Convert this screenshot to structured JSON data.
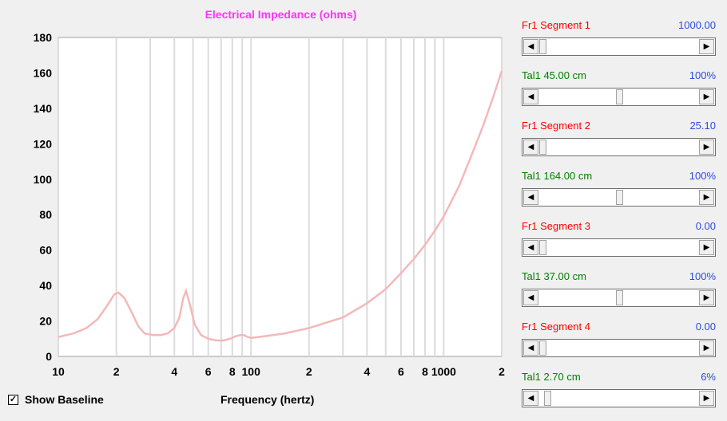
{
  "chart_data": {
    "type": "line",
    "title": "Electrical Impedance (ohms)",
    "xlabel": "Frequency (hertz)",
    "ylabel": "",
    "xscale": "log",
    "xlim": [
      10,
      2000
    ],
    "ylim": [
      0,
      180
    ],
    "grid": true,
    "line_color": "#f4b8b8",
    "yticks": [
      "0",
      "20",
      "40",
      "60",
      "80",
      "100",
      "120",
      "140",
      "160",
      "180"
    ],
    "xticks": [
      {
        "value": 10,
        "label": "10"
      },
      {
        "value": 20,
        "label": "2"
      },
      {
        "value": 40,
        "label": "4"
      },
      {
        "value": 60,
        "label": "6"
      },
      {
        "value": 80,
        "label": "8"
      },
      {
        "value": 100,
        "label": "100"
      },
      {
        "value": 200,
        "label": "2"
      },
      {
        "value": 400,
        "label": "4"
      },
      {
        "value": 600,
        "label": "6"
      },
      {
        "value": 800,
        "label": "8"
      },
      {
        "value": 1000,
        "label": "1000"
      },
      {
        "value": 2000,
        "label": "2"
      }
    ],
    "series": [
      {
        "x": [
          10,
          12,
          14,
          16,
          18,
          19.5,
          20.5,
          22,
          24,
          26,
          28,
          31,
          34,
          37,
          40,
          42.5,
          44.5,
          46,
          48,
          51,
          55,
          60,
          66,
          72,
          78,
          84,
          88,
          92,
          96,
          100,
          110,
          130,
          150,
          200,
          300,
          400,
          500,
          600,
          700,
          800,
          900,
          1000,
          1200,
          1400,
          1600,
          1800,
          2000
        ],
        "y": [
          11,
          13,
          16,
          21,
          29,
          35,
          36,
          33,
          25,
          17,
          13,
          12,
          12,
          13,
          16,
          22,
          33,
          37,
          30,
          18,
          12,
          10,
          9,
          9,
          10,
          11.5,
          12,
          12,
          11,
          10.5,
          11,
          12,
          13,
          16,
          22,
          30,
          38,
          47,
          55,
          63,
          71,
          79,
          96,
          114,
          130,
          146,
          161
        ]
      }
    ]
  },
  "controls": {
    "show_baseline_label": "Show Baseline",
    "show_baseline_checked": "✓",
    "sliders": [
      {
        "left_label": "Fr1  Segment 1",
        "value": "1000.00",
        "color": "red",
        "position": 0.0
      },
      {
        "left_label": "Tal1  45.00 cm",
        "value": "100%",
        "color": "green",
        "position": 0.5
      },
      {
        "left_label": "Fr1  Segment 2",
        "value": "25.10",
        "color": "red",
        "position": 0.0
      },
      {
        "left_label": "Tal1  164.00 cm",
        "value": "100%",
        "color": "green",
        "position": 0.5
      },
      {
        "left_label": "Fr1  Segment 3",
        "value": "0.00",
        "color": "red",
        "position": 0.0
      },
      {
        "left_label": "Tal1  37.00 cm",
        "value": "100%",
        "color": "green",
        "position": 0.5
      },
      {
        "left_label": "Fr1  Segment 4",
        "value": "0.00",
        "color": "red",
        "position": 0.0
      },
      {
        "left_label": "Tal1  2.70 cm",
        "value": "6%",
        "color": "green",
        "position": 0.03
      }
    ]
  }
}
